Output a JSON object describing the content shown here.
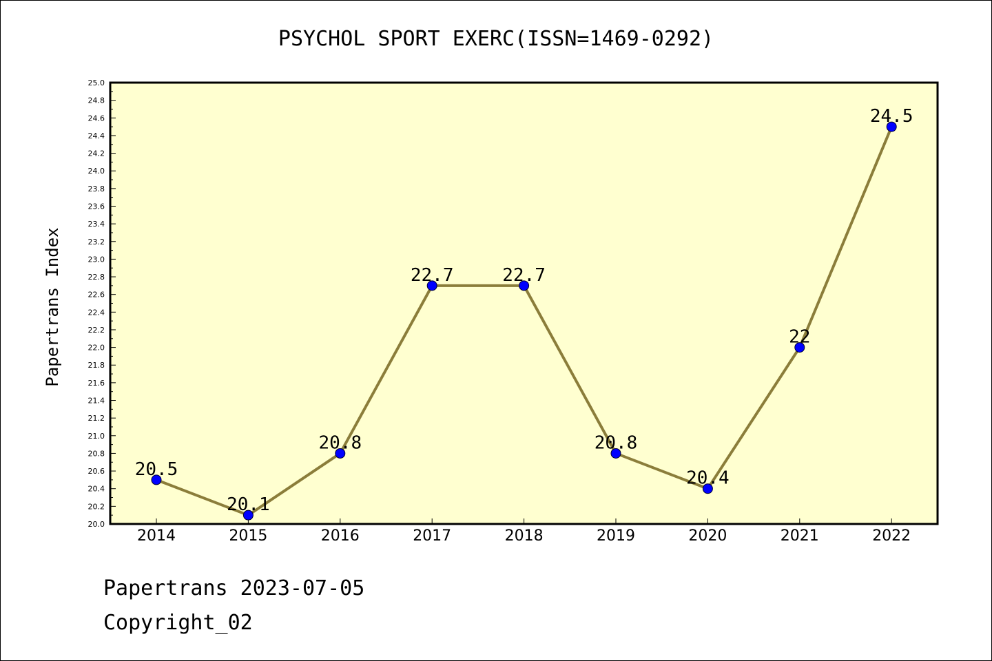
{
  "chart_data": {
    "type": "line",
    "title": "PSYCHOL SPORT EXERC(ISSN=1469-0292)",
    "xlabel": "",
    "ylabel": "Papertrans Index",
    "categories": [
      "2014",
      "2015",
      "2016",
      "2017",
      "2018",
      "2019",
      "2020",
      "2021",
      "2022"
    ],
    "values": [
      20.5,
      20.1,
      20.8,
      22.7,
      22.7,
      20.8,
      20.4,
      22,
      24.5
    ],
    "data_labels": [
      "20.5",
      "20.1",
      "20.8",
      "22.7",
      "22.7",
      "20.8",
      "20.4",
      "22",
      "24.5"
    ],
    "ylim": [
      20.0,
      25.0
    ],
    "yticks": [
      "20.0",
      "20.2",
      "20.4",
      "20.6",
      "20.8",
      "21.0",
      "21.2",
      "21.4",
      "21.6",
      "21.8",
      "22.0",
      "22.2",
      "22.4",
      "22.6",
      "22.8",
      "23.0",
      "23.2",
      "23.4",
      "23.6",
      "23.8",
      "24.0",
      "24.2",
      "24.4",
      "24.6",
      "24.8",
      "25.0"
    ],
    "grid": false,
    "colors": {
      "plot_background": "#ffffd0",
      "line": "#8b7d3a",
      "marker": "#0000ff"
    }
  },
  "footer": {
    "line1": "Papertrans 2023-07-05",
    "line2": "Copyright_02"
  }
}
